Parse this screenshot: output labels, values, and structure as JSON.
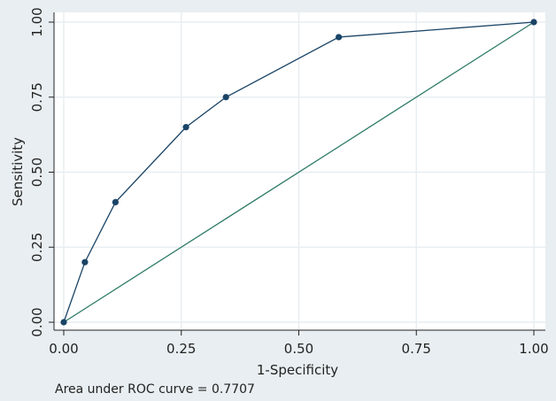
{
  "chart_data": {
    "type": "line",
    "xlabel": "1-Specificity",
    "ylabel": "Sensitivity",
    "xlim": [
      0,
      1
    ],
    "ylim": [
      0,
      1
    ],
    "xticks": [
      "0.00",
      "0.25",
      "0.50",
      "0.75",
      "1.00"
    ],
    "yticks": [
      "0.00",
      "0.25",
      "0.50",
      "0.75",
      "1.00"
    ],
    "grid": true,
    "series": [
      {
        "markers": true,
        "color": "#1a4466",
        "x": [
          0.0,
          0.045,
          0.11,
          0.26,
          0.345,
          0.585,
          1.0
        ],
        "y": [
          0.0,
          0.2,
          0.4,
          0.65,
          0.75,
          0.95,
          1.0
        ]
      },
      {
        "markers": false,
        "color": "#2d7a66",
        "x": [
          0.0,
          1.0
        ],
        "y": [
          0.0,
          1.0
        ]
      }
    ],
    "annotation": "Area under ROC curve = 0.7707"
  },
  "colors": {
    "background": "#e8eef1",
    "plot_area": "#ffffff",
    "grid": "#e8eef1",
    "axis": "#222222"
  }
}
